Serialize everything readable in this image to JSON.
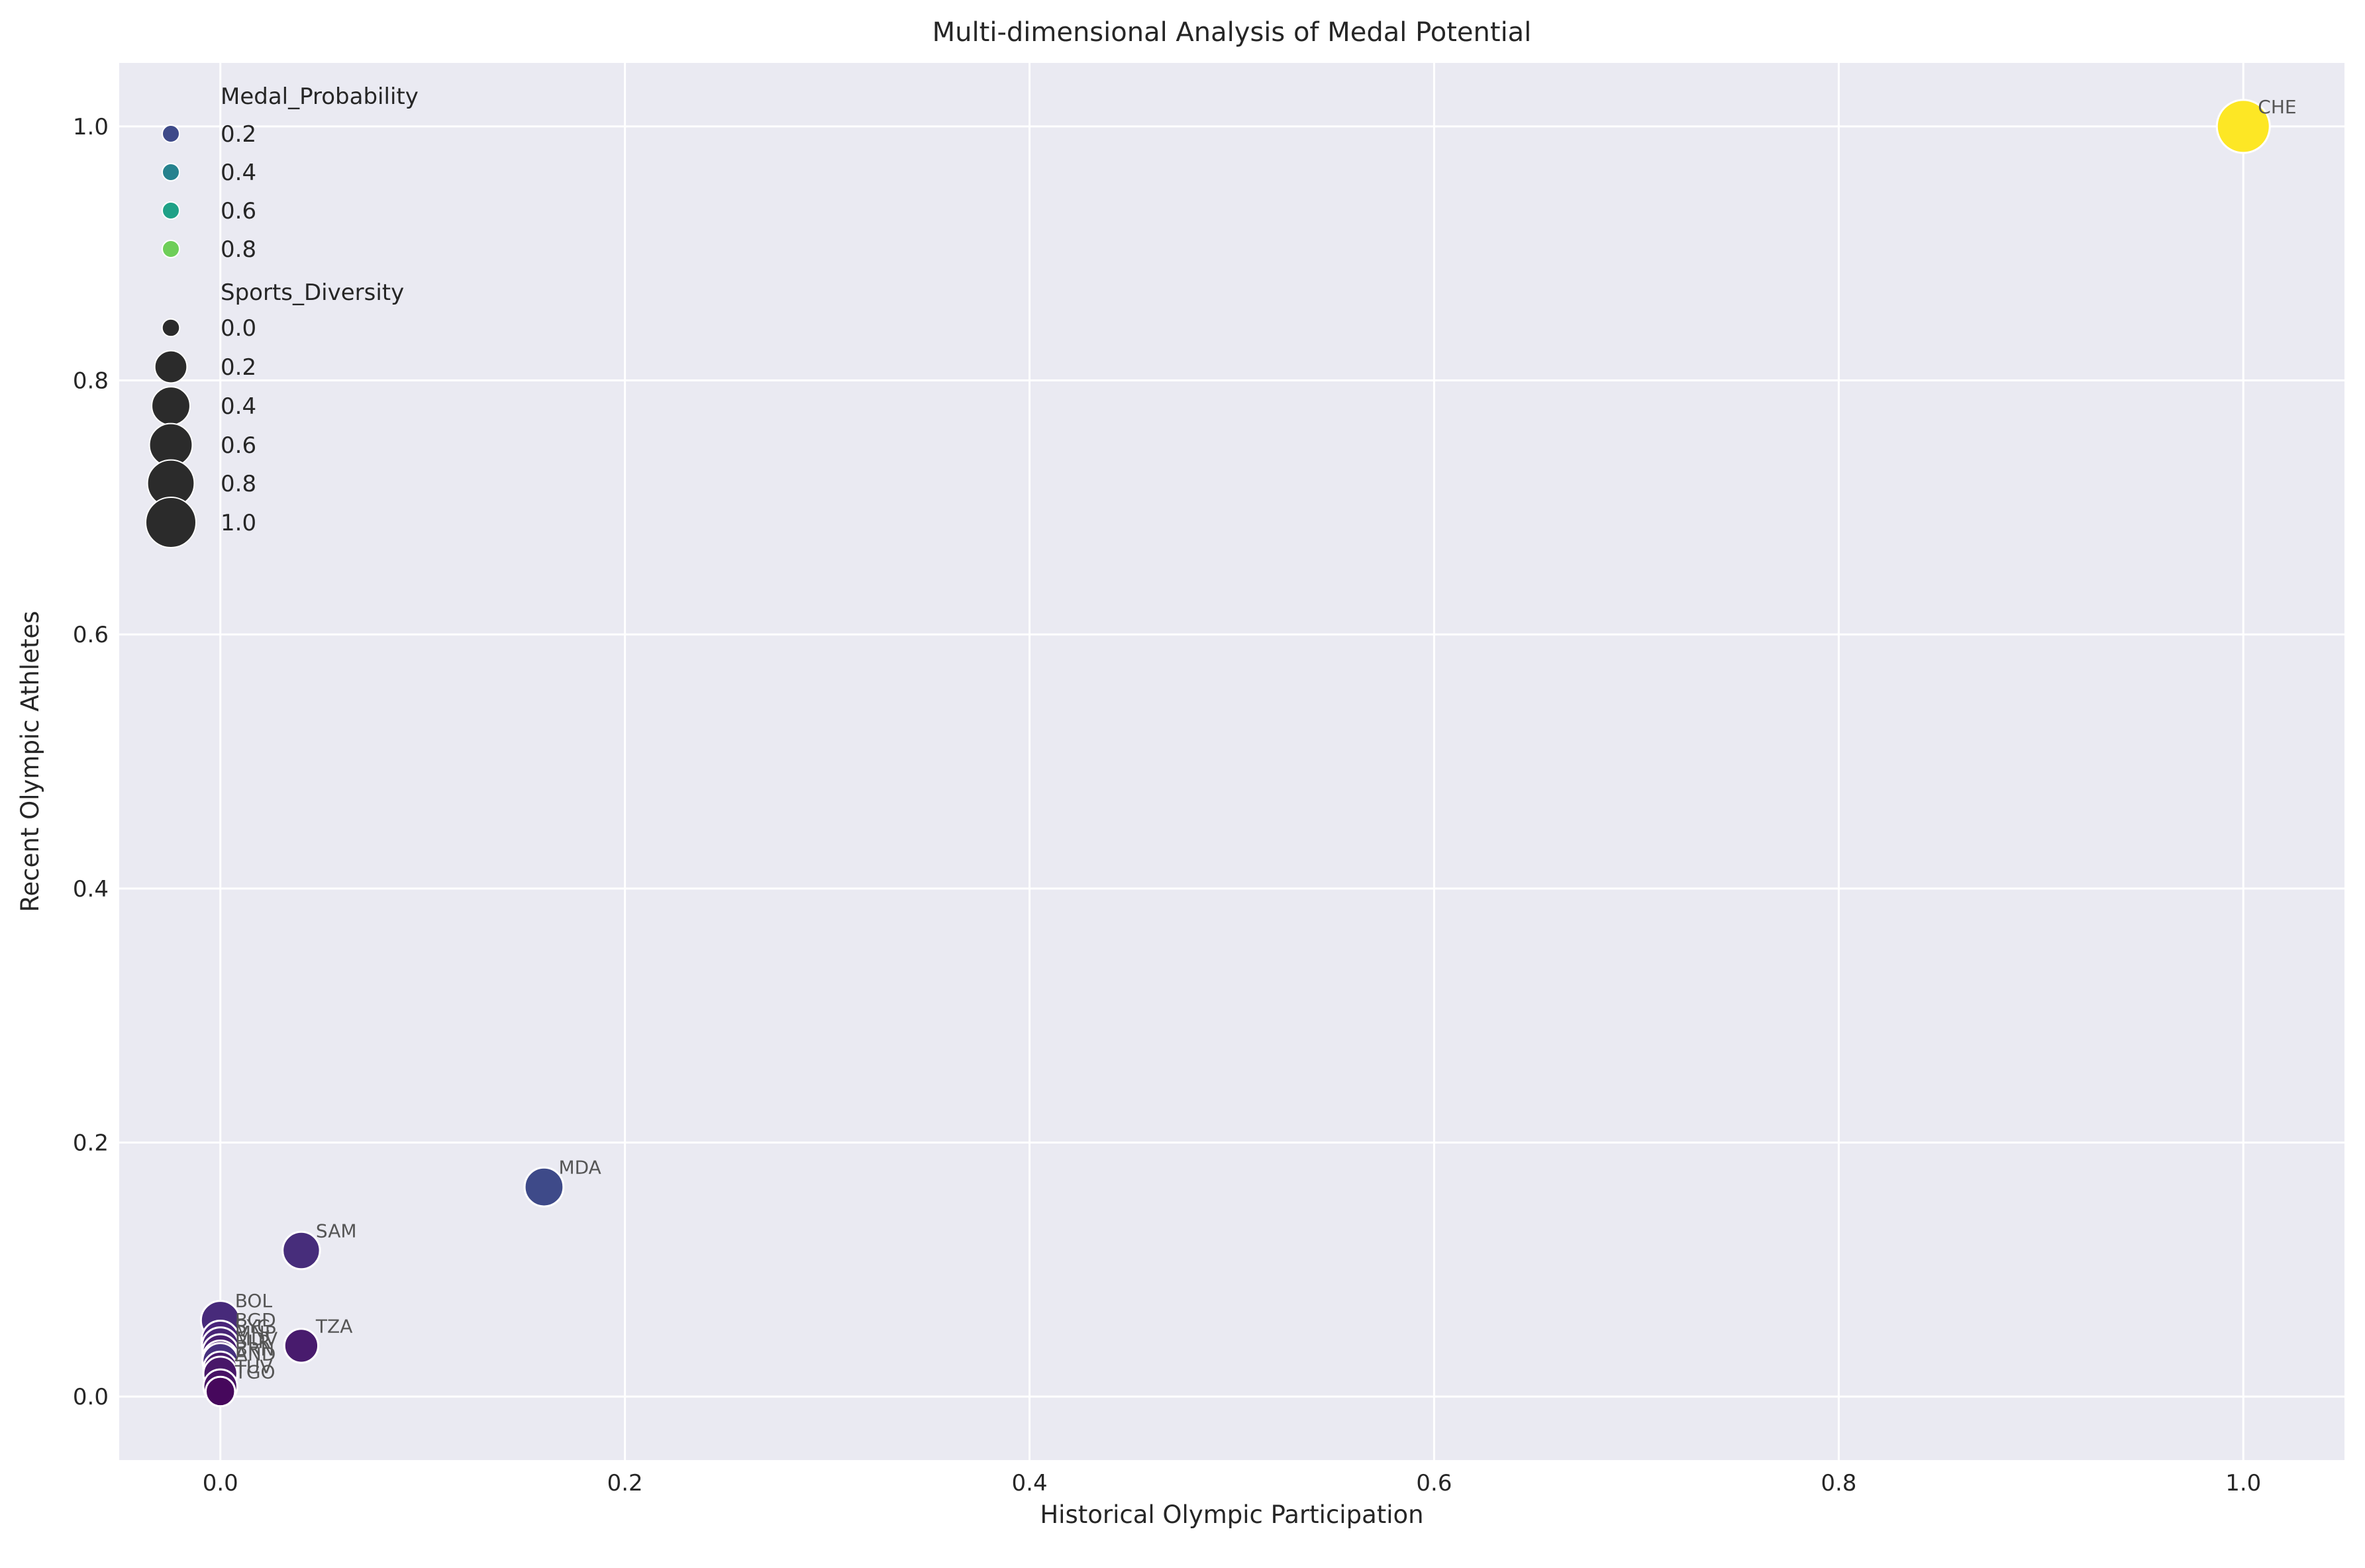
{
  "chart_data": {
    "type": "scatter",
    "title": "Multi-dimensional Analysis of Medal Potential",
    "xlabel": "Historical Olympic Participation",
    "ylabel": "Recent Olympic Athletes",
    "xlim": [
      -0.05,
      1.05
    ],
    "ylim": [
      -0.05,
      1.05
    ],
    "xticks": [
      0.0,
      0.2,
      0.4,
      0.6,
      0.8,
      1.0
    ],
    "yticks": [
      0.0,
      0.2,
      0.4,
      0.6,
      0.8,
      1.0
    ],
    "xtick_labels": [
      "0.0",
      "0.2",
      "0.4",
      "0.6",
      "0.8",
      "1.0"
    ],
    "ytick_labels": [
      "0.0",
      "0.2",
      "0.4",
      "0.6",
      "0.8",
      "1.0"
    ],
    "grid": true,
    "legend_position": "upper-left",
    "hue_legend": {
      "title": "Medal_Probability",
      "entries": [
        {
          "label": "0.2",
          "color": "#3e4a89"
        },
        {
          "label": "0.4",
          "color": "#26828e"
        },
        {
          "label": "0.6",
          "color": "#1fa187"
        },
        {
          "label": "0.8",
          "color": "#6ece58"
        }
      ]
    },
    "size_legend": {
      "title": "Sports_Diversity",
      "entries": [
        {
          "label": "0.0",
          "value": 0.0
        },
        {
          "label": "0.2",
          "value": 0.2
        },
        {
          "label": "0.4",
          "value": 0.4
        },
        {
          "label": "0.6",
          "value": 0.6
        },
        {
          "label": "0.8",
          "value": 0.8
        },
        {
          "label": "1.0",
          "value": 1.0
        }
      ]
    },
    "points": [
      {
        "label": "CHE",
        "x": 1.0,
        "y": 1.0,
        "medal_probability": 1.0,
        "sports_diversity": 1.0,
        "color": "#fde725"
      },
      {
        "label": "MDA",
        "x": 0.16,
        "y": 0.165,
        "medal_probability": 0.2,
        "sports_diversity": 0.35,
        "color": "#3e4a89"
      },
      {
        "label": "SAM",
        "x": 0.04,
        "y": 0.115,
        "medal_probability": 0.1,
        "sports_diversity": 0.3,
        "color": "#472d7b"
      },
      {
        "label": "TZA",
        "x": 0.04,
        "y": 0.04,
        "medal_probability": 0.05,
        "sports_diversity": 0.2,
        "color": "#481b6d"
      },
      {
        "label": "BOL",
        "x": 0.0,
        "y": 0.06,
        "medal_probability": 0.08,
        "sports_diversity": 0.35,
        "color": "#472a7a"
      },
      {
        "label": "BGD",
        "x": 0.0,
        "y": 0.045,
        "medal_probability": 0.07,
        "sports_diversity": 0.3,
        "color": "#48237a"
      },
      {
        "label": "SYC",
        "x": 0.0,
        "y": 0.04,
        "medal_probability": 0.06,
        "sports_diversity": 0.28,
        "color": "#482576"
      },
      {
        "label": "MNP",
        "x": 0.0,
        "y": 0.035,
        "medal_probability": 0.05,
        "sports_diversity": 0.25,
        "color": "#481f70"
      },
      {
        "label": "MDV",
        "x": 0.0,
        "y": 0.03,
        "medal_probability": 0.05,
        "sports_diversity": 0.25,
        "color": "#481f70"
      },
      {
        "label": "BLR",
        "x": 0.0,
        "y": 0.028,
        "medal_probability": 0.05,
        "sports_diversity": 0.25,
        "color": "#46307e"
      },
      {
        "label": "BRN",
        "x": 0.0,
        "y": 0.022,
        "medal_probability": 0.05,
        "sports_diversity": 0.2,
        "color": "#481a6c"
      },
      {
        "label": "AND",
        "x": 0.0,
        "y": 0.018,
        "medal_probability": 0.04,
        "sports_diversity": 0.2,
        "color": "#481769"
      },
      {
        "label": "TUV",
        "x": 0.0,
        "y": 0.008,
        "medal_probability": 0.03,
        "sports_diversity": 0.2,
        "color": "#471365"
      },
      {
        "label": "TGO",
        "x": 0.0,
        "y": 0.004,
        "medal_probability": 0.02,
        "sports_diversity": 0.1,
        "color": "#46085c"
      }
    ]
  }
}
